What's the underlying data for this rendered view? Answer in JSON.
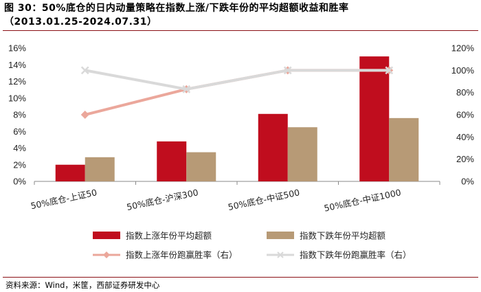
{
  "figure": {
    "title_line1": "图 30：50%底仓的日内动量策略在指数上涨/下跌年份的平均超额收益和胜率",
    "title_line2": "（2013.01.25-2024.07.31）",
    "source": "资料来源：Wind，米筐，西部证券研发中心"
  },
  "chart_data": {
    "type": "bar",
    "categories": [
      "50%底仓-上证50",
      "50%底仓-沪深300",
      "50%底仓-中证500",
      "50%底仓-中证1000"
    ],
    "series": [
      {
        "name": "指数上涨年份平均超额",
        "kind": "bar",
        "axis": "left",
        "color": "#c00d1e",
        "values": [
          2.0,
          4.8,
          8.1,
          15.0
        ]
      },
      {
        "name": "指数下跌年份平均超额",
        "kind": "bar",
        "axis": "left",
        "color": "#b79a76",
        "values": [
          2.9,
          3.5,
          6.5,
          7.6
        ]
      },
      {
        "name": "指数上涨年份跑赢胜率（右）",
        "kind": "line",
        "axis": "right",
        "color": "#eba79b",
        "values": [
          60,
          83,
          100,
          100
        ]
      },
      {
        "name": "指数下跌年份跑赢胜率（右）",
        "kind": "line",
        "axis": "right",
        "color": "#d9d9d9",
        "values": [
          100,
          83,
          100,
          100
        ]
      }
    ],
    "y_left": {
      "min": 0,
      "max": 16,
      "step": 2,
      "tick_labels": [
        "0%",
        "2%",
        "4%",
        "6%",
        "8%",
        "10%",
        "12%",
        "14%",
        "16%"
      ]
    },
    "y_right": {
      "min": 0,
      "max": 120,
      "step": 20,
      "tick_labels": [
        "0%",
        "20%",
        "40%",
        "60%",
        "80%",
        "100%",
        "120%"
      ]
    },
    "grid": false,
    "legend_position": "bottom"
  }
}
